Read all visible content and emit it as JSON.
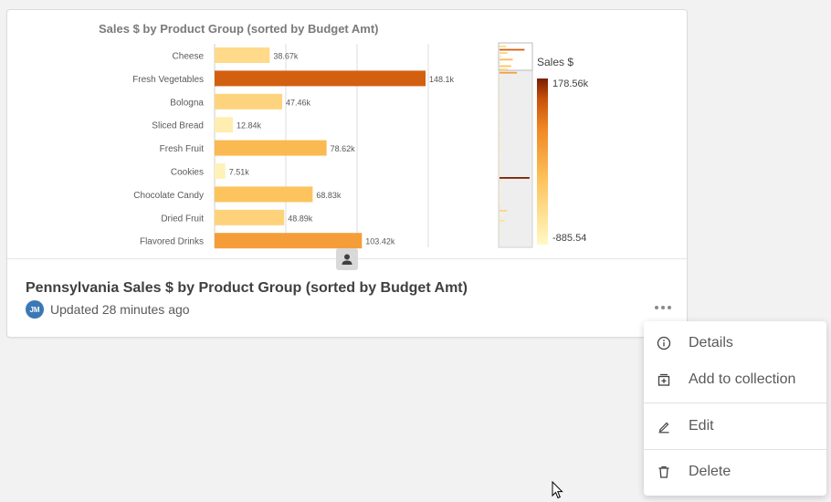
{
  "card": {
    "title": "Pennsylvania Sales $ by Product Group (sorted by Budget Amt)",
    "owner_initials": "JM",
    "updated": "Updated 28 minutes ago"
  },
  "chart_data": {
    "type": "bar",
    "orientation": "horizontal",
    "title": "Sales $ by Product Group (sorted by Budget Amt)",
    "categories": [
      "Cheese",
      "Fresh Vegetables",
      "Bologna",
      "Sliced Bread",
      "Fresh Fruit",
      "Cookies",
      "Chocolate Candy",
      "Dried Fruit",
      "Flavored Drinks"
    ],
    "values": [
      38670,
      148100,
      47460,
      12840,
      78620,
      7510,
      68830,
      48890,
      103420
    ],
    "value_labels": [
      "38.67k",
      "148.1k",
      "47.46k",
      "12.84k",
      "78.62k",
      "7.51k",
      "68.83k",
      "48.89k",
      "103.42k"
    ],
    "color_by": "value",
    "legend": {
      "title": "Sales $",
      "max_label": "178.56k",
      "min_label": "-885.54",
      "max": 178560,
      "min": -885.54,
      "placement": "right"
    },
    "grid": true
  },
  "menu": {
    "items": [
      {
        "label": "Details",
        "icon": "info-icon"
      },
      {
        "label": "Add to collection",
        "icon": "add-to-collection-icon"
      },
      {
        "label": "Edit",
        "icon": "edit-icon"
      },
      {
        "label": "Delete",
        "icon": "delete-icon"
      }
    ]
  }
}
